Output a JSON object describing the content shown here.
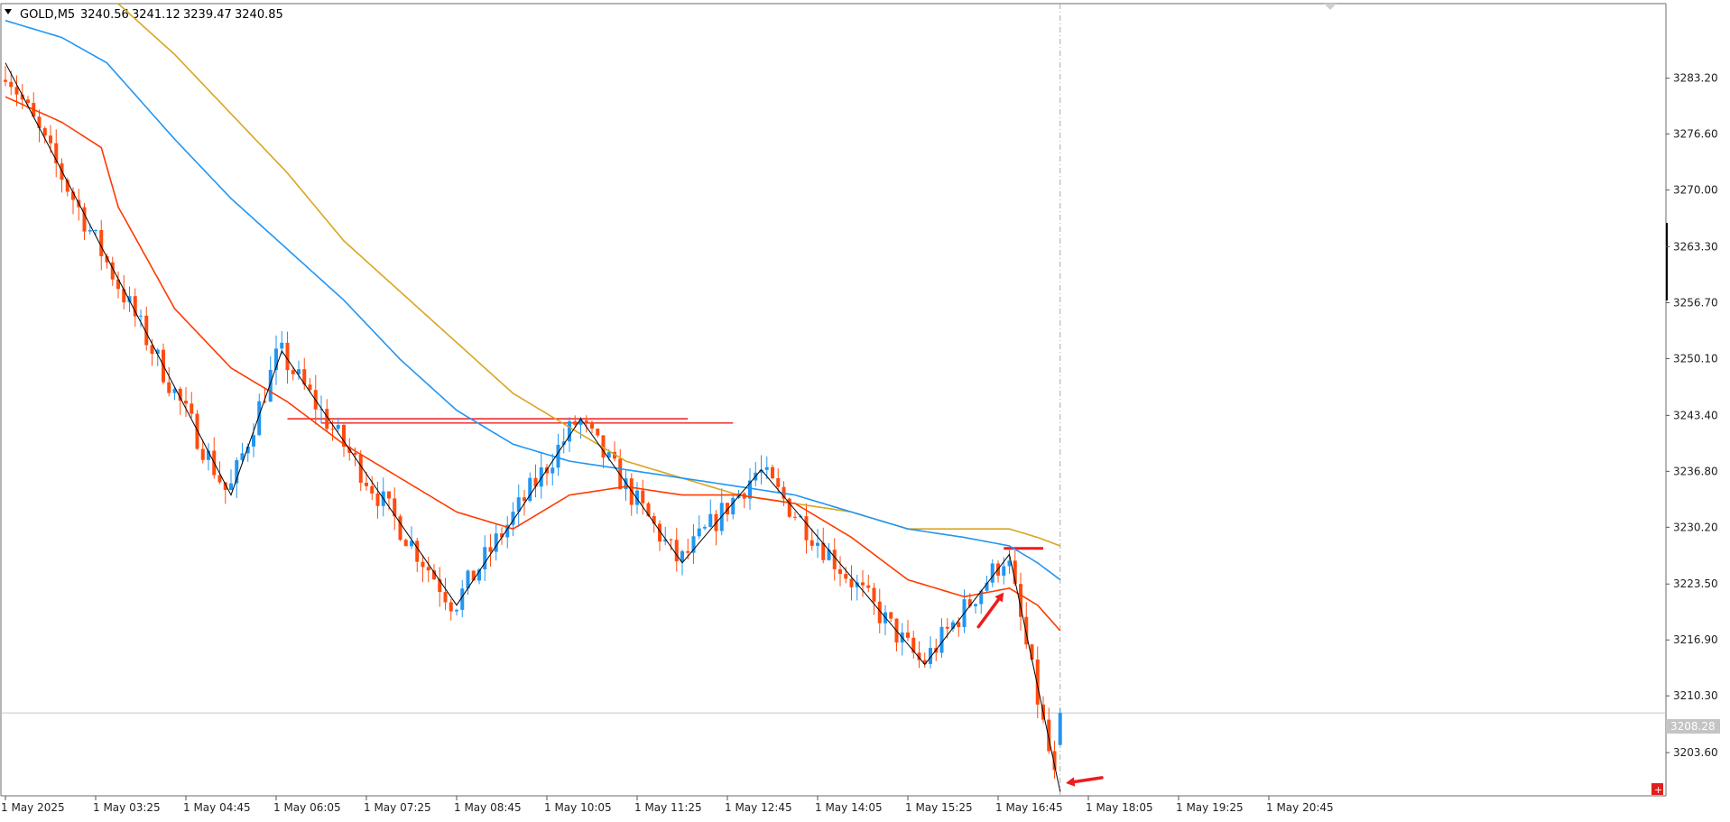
{
  "header": {
    "symbol_timeframe": "GOLD,M5",
    "open": "3240.56",
    "high": "3241.12",
    "low": "3239.47",
    "close": "3240.85"
  },
  "current_price_label": "3208.28",
  "colors": {
    "bull": "#2196f3",
    "bear": "#ff4c0f",
    "ema_fast": "#ff3b00",
    "ema_mid": "#2196f3",
    "ema_slow": "#daa520",
    "zigzag": "#000000",
    "annotation": "#ee1c1c",
    "grid": "#c8c8c8"
  },
  "chart_data": {
    "type": "candlestick",
    "ylim": [
      3198.5,
      3292.0
    ],
    "y_ticks": [
      "3283.20",
      "3276.60",
      "3270.00",
      "3263.30",
      "3256.70",
      "3250.10",
      "3243.40",
      "3236.80",
      "3230.20",
      "3223.50",
      "3216.90",
      "3210.30",
      "3203.60"
    ],
    "x_ticks": [
      "1 May 2025",
      "1 May 03:25",
      "1 May 04:45",
      "1 May 06:05",
      "1 May 07:25",
      "1 May 08:45",
      "1 May 10:05",
      "1 May 11:25",
      "1 May 12:45",
      "1 May 14:05",
      "1 May 15:25",
      "1 May 16:45",
      "1 May 18:05",
      "1 May 19:25",
      "1 May 20:45"
    ],
    "n_slots": 288,
    "zigzag_points": [
      [
        0,
        3285
      ],
      [
        40,
        3234
      ],
      [
        49,
        3251
      ],
      [
        80,
        3221
      ],
      [
        102,
        3243
      ],
      [
        120,
        3226
      ],
      [
        134,
        3237
      ],
      [
        163,
        3214
      ],
      [
        178,
        3227
      ],
      [
        187,
        3199
      ]
    ],
    "ema_fast": [
      [
        0,
        3281
      ],
      [
        10,
        3278
      ],
      [
        17,
        3275
      ],
      [
        20,
        3268
      ],
      [
        30,
        3256
      ],
      [
        40,
        3249
      ],
      [
        50,
        3245
      ],
      [
        60,
        3240
      ],
      [
        70,
        3236
      ],
      [
        80,
        3232
      ],
      [
        90,
        3230
      ],
      [
        100,
        3234
      ],
      [
        110,
        3235
      ],
      [
        120,
        3234
      ],
      [
        130,
        3234
      ],
      [
        140,
        3233
      ],
      [
        150,
        3229
      ],
      [
        160,
        3224
      ],
      [
        170,
        3222
      ],
      [
        178,
        3223
      ],
      [
        183,
        3221
      ],
      [
        187,
        3218
      ]
    ],
    "ema_mid": [
      [
        0,
        3290
      ],
      [
        10,
        3288
      ],
      [
        18,
        3285
      ],
      [
        30,
        3276
      ],
      [
        40,
        3269
      ],
      [
        50,
        3263
      ],
      [
        60,
        3257
      ],
      [
        70,
        3250
      ],
      [
        80,
        3244
      ],
      [
        90,
        3240
      ],
      [
        100,
        3238
      ],
      [
        110,
        3237
      ],
      [
        120,
        3236
      ],
      [
        130,
        3235
      ],
      [
        140,
        3234
      ],
      [
        150,
        3232
      ],
      [
        160,
        3230
      ],
      [
        170,
        3229
      ],
      [
        178,
        3228
      ],
      [
        183,
        3226
      ],
      [
        187,
        3224
      ]
    ],
    "ema_slow": [
      [
        20,
        3292
      ],
      [
        30,
        3286
      ],
      [
        40,
        3279
      ],
      [
        50,
        3272
      ],
      [
        60,
        3264
      ],
      [
        70,
        3258
      ],
      [
        80,
        3252
      ],
      [
        90,
        3246
      ],
      [
        100,
        3242
      ],
      [
        110,
        3238
      ],
      [
        120,
        3236
      ],
      [
        130,
        3234
      ],
      [
        140,
        3233
      ],
      [
        150,
        3232
      ],
      [
        160,
        3230
      ],
      [
        170,
        3230
      ],
      [
        178,
        3230
      ],
      [
        183,
        3229
      ],
      [
        187,
        3228
      ]
    ],
    "horizontal_levels": [
      {
        "price": 3243.0,
        "from": 50,
        "to": 121
      },
      {
        "price": 3242.5,
        "from": 56,
        "to": 129
      },
      {
        "price": 3227.7,
        "from": 177,
        "to": 184
      }
    ],
    "last_price": 3208.28,
    "current_bar_index": 187,
    "arrows": [
      {
        "at_index": 177,
        "at_price": 3222.5,
        "direction": "up-right"
      },
      {
        "at_index": 188,
        "at_price": 3200.0,
        "direction": "left"
      }
    ]
  }
}
